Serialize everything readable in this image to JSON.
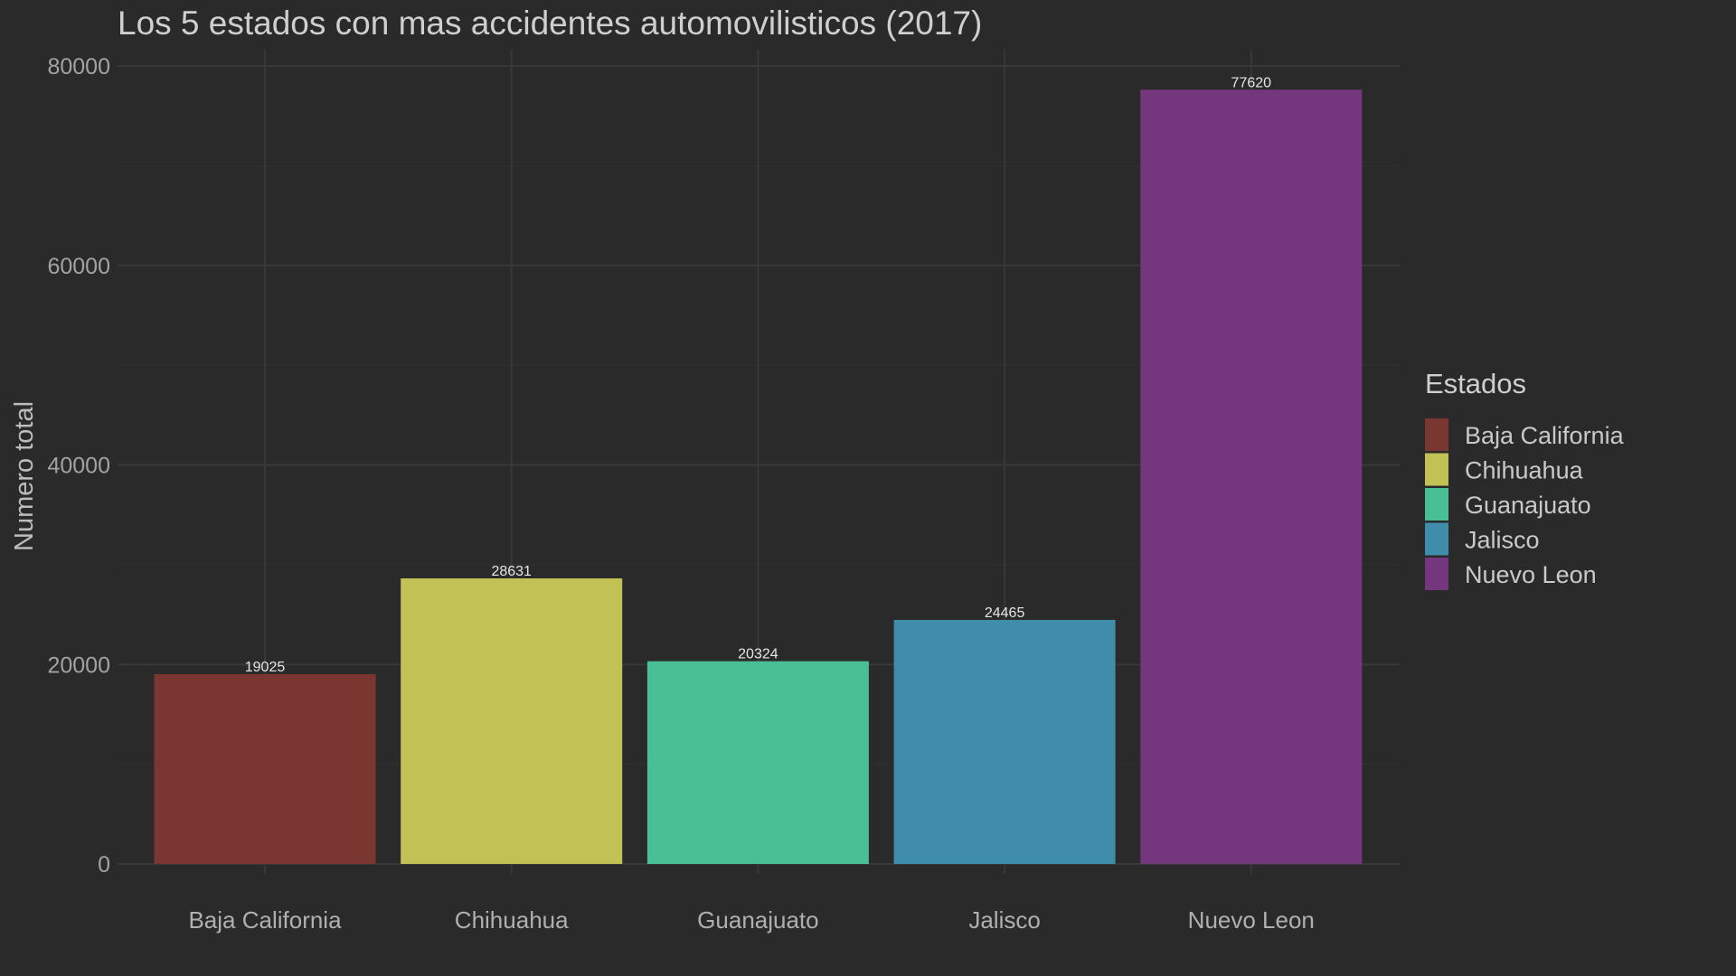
{
  "chart_data": {
    "type": "bar",
    "title": "Los 5 estados con mas accidentes automovilisticos (2017)",
    "xlabel": "",
    "ylabel": "Numero total",
    "categories": [
      "Baja California",
      "Chihuahua",
      "Guanajuato",
      "Jalisco",
      "Nuevo Leon"
    ],
    "values": [
      19025,
      28631,
      20324,
      24465,
      77620
    ],
    "colors": [
      "#7a3631",
      "#c1c155",
      "#4abe94",
      "#3f8cab",
      "#74367c"
    ],
    "ylim": [
      0,
      80000
    ],
    "yticks": [
      0,
      20000,
      40000,
      60000,
      80000
    ],
    "grid": true,
    "legend": {
      "title": "Estados",
      "position": "right",
      "entries": [
        "Baja California",
        "Chihuahua",
        "Guanajuato",
        "Jalisco",
        "Nuevo Leon"
      ]
    }
  }
}
